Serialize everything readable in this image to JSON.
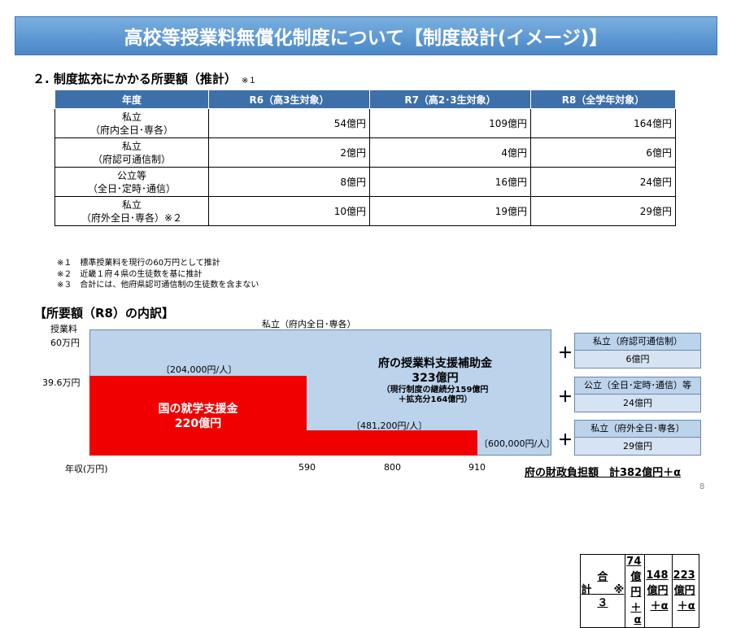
{
  "title": "高校等授業料無償化制度について【制度設計(イメージ)】",
  "section2": {
    "heading": "２. 制度拡充にかかる所要額（推計）",
    "note": "※１"
  },
  "table": {
    "headers": [
      "年度",
      "R6（高3生対象）",
      "R7（高2･3生対象）",
      "R8（全学年対象）"
    ],
    "rows": [
      {
        "cat1": "私立",
        "cat2": "（府内全日･専各）",
        "r6": "54億円",
        "r7": "109億円",
        "r8": "164億円"
      },
      {
        "cat1": "私立",
        "cat2": "（府認可通信制）",
        "r6": "2億円",
        "r7": "4億円",
        "r8": "6億円"
      },
      {
        "cat1": "公立等",
        "cat2": "（全日･定時･通信）",
        "r6": "8億円",
        "r7": "16億円",
        "r8": "24億円"
      },
      {
        "cat1": "私立",
        "cat2": "（府外全日･専各）※２",
        "r6": "10億円",
        "r7": "19億円",
        "r8": "29億円"
      }
    ],
    "total": {
      "label": "合計",
      "note": "※３",
      "r6": "74億円＋α",
      "r7": "148億円＋α",
      "r8": "223億円＋α"
    }
  },
  "notes": [
    "※１　標準授業料を現行の60万円として推計",
    "※２　近畿１府４県の生徒数を基に推計",
    "※３　合計には、他府県認可通信制の生徒数を含まない"
  ],
  "section3": {
    "heading": "【所要額（R8）の内訳】"
  },
  "chart": {
    "top_label": "私立（府内全日･専各）",
    "y_label1": "授業料",
    "y_label2": "60万円",
    "y_tick": "39.6万円",
    "x_label": "年収(万円)",
    "x_ticks": [
      "590",
      "800",
      "910"
    ],
    "seg_labels": [
      "〔204,000円/人〕",
      "〔481,200円/人〕",
      "〔600,000円/人〕"
    ],
    "national": {
      "line1": "国の就学支援金",
      "line2": "220億円"
    },
    "prefecture": {
      "line1": "府の授業料支援補助金",
      "line2": "323億円",
      "line3": "（現行制度の継続分159億円",
      "line4": "＋拡充分164億円）"
    }
  },
  "side_boxes": [
    {
      "header": "私立（府認可通信制）",
      "value": "6億円"
    },
    {
      "header": "公立（全日･定時･通信）等",
      "value": "24億円"
    },
    {
      "header": "私立（府外全日･専各）",
      "value": "29億円"
    }
  ],
  "plus_sign": "＋",
  "burden_total": "府の財政負担額　計382億円＋α",
  "page_number": "8",
  "colors": {
    "banner": "#4a86c8",
    "table_header": "#3d6fa8",
    "national": "#f00000",
    "prefecture": "#bcd3ec"
  }
}
